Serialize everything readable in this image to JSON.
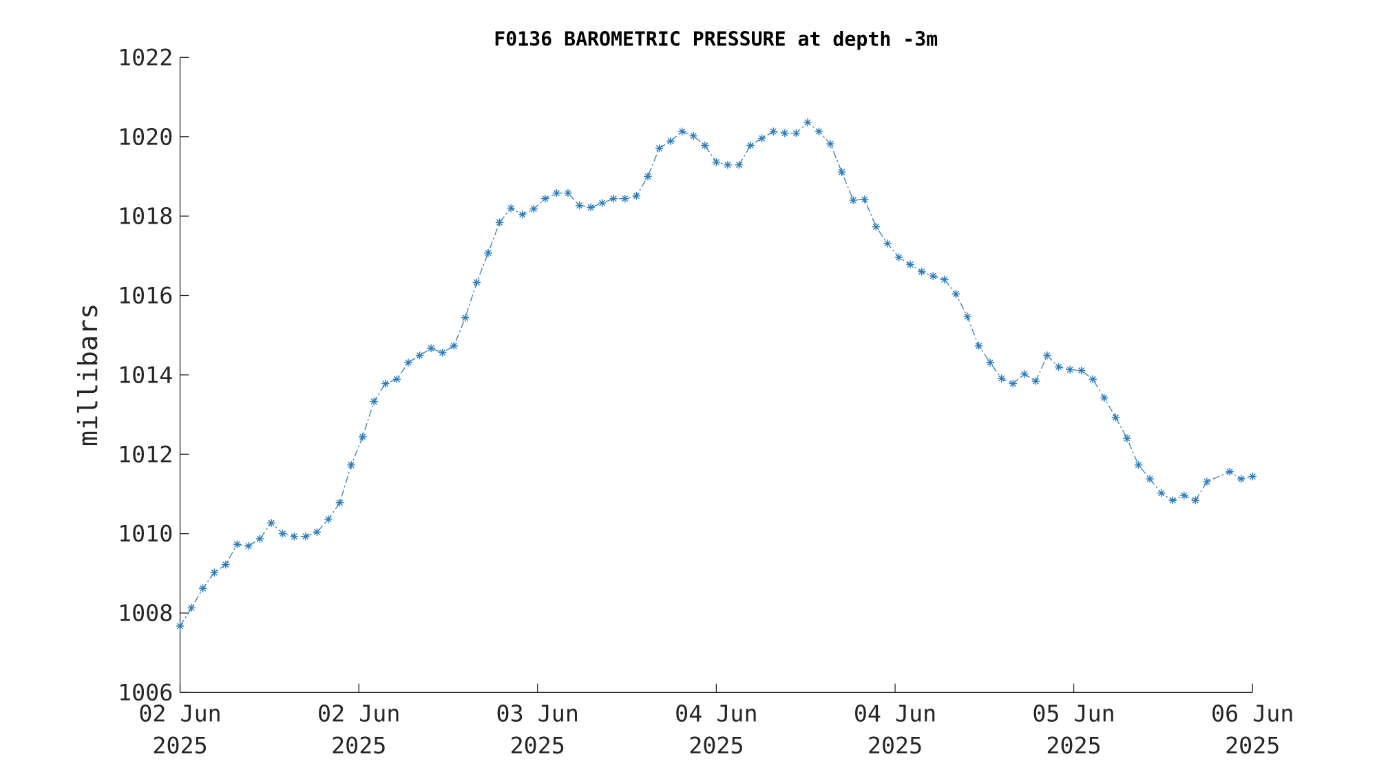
{
  "chart_data": {
    "type": "line",
    "title": "F0136 BAROMETRIC PRESSURE at depth -3m",
    "ylabel": "millibars",
    "x": [
      0,
      1,
      2,
      3,
      4,
      5,
      6,
      7,
      8,
      9,
      10,
      11,
      12,
      13,
      14,
      15,
      16,
      17,
      18,
      19,
      20,
      21,
      22,
      23,
      24,
      25,
      26,
      27,
      28,
      29,
      30,
      31,
      32,
      33,
      34,
      35,
      36,
      37,
      38,
      39,
      40,
      41,
      42,
      43,
      44,
      45,
      46,
      47,
      48,
      49,
      50,
      51,
      52,
      53,
      54,
      55,
      56,
      57,
      58,
      59,
      60,
      61,
      62,
      63,
      64,
      65,
      66,
      67,
      68,
      69,
      70,
      71,
      72,
      73,
      74,
      75,
      76,
      77,
      78,
      79,
      80,
      81,
      82,
      83,
      84,
      85,
      86,
      87,
      88,
      89,
      90,
      92,
      93,
      94
    ],
    "series": [
      {
        "name": "F0136",
        "color": "#2b7bba",
        "values": [
          1007.67,
          1008.13,
          1008.62,
          1009.02,
          1009.22,
          1009.73,
          1009.69,
          1009.87,
          1010.27,
          1010.0,
          1009.93,
          1009.93,
          1010.04,
          1010.36,
          1010.78,
          1011.73,
          1012.44,
          1013.33,
          1013.78,
          1013.89,
          1014.31,
          1014.49,
          1014.67,
          1014.56,
          1014.73,
          1015.44,
          1016.33,
          1017.07,
          1017.84,
          1018.2,
          1018.04,
          1018.18,
          1018.44,
          1018.58,
          1018.58,
          1018.27,
          1018.22,
          1018.33,
          1018.44,
          1018.44,
          1018.51,
          1019.0,
          1019.71,
          1019.89,
          1020.13,
          1020.02,
          1019.78,
          1019.36,
          1019.29,
          1019.29,
          1019.78,
          1019.96,
          1020.13,
          1020.09,
          1020.09,
          1020.36,
          1020.13,
          1019.82,
          1019.11,
          1018.4,
          1018.42,
          1017.73,
          1017.31,
          1016.96,
          1016.78,
          1016.6,
          1016.49,
          1016.4,
          1016.04,
          1015.47,
          1014.73,
          1014.31,
          1013.91,
          1013.78,
          1014.02,
          1013.84,
          1014.49,
          1014.2,
          1014.13,
          1014.11,
          1013.89,
          1013.42,
          1012.93,
          1012.4,
          1011.73,
          1011.38,
          1011.02,
          1010.84,
          1010.96,
          1010.84,
          1011.31,
          1011.56,
          1011.38,
          1011.44
        ]
      }
    ],
    "xlim": [
      0,
      94
    ],
    "xticks": [
      {
        "value": 0,
        "label": "02 Jun 2025"
      },
      {
        "value": 15.67,
        "label": "02 Jun 2025"
      },
      {
        "value": 31.33,
        "label": "03 Jun 2025"
      },
      {
        "value": 47,
        "label": "04 Jun 2025"
      },
      {
        "value": 62.67,
        "label": "04 Jun 2025"
      },
      {
        "value": 78.33,
        "label": "05 Jun 2025"
      },
      {
        "value": 94,
        "label": "06 Jun 2025"
      }
    ],
    "ylim": [
      1006,
      1022
    ],
    "yticks": [
      1006,
      1008,
      1010,
      1012,
      1014,
      1016,
      1018,
      1020,
      1022
    ],
    "grid": false
  }
}
